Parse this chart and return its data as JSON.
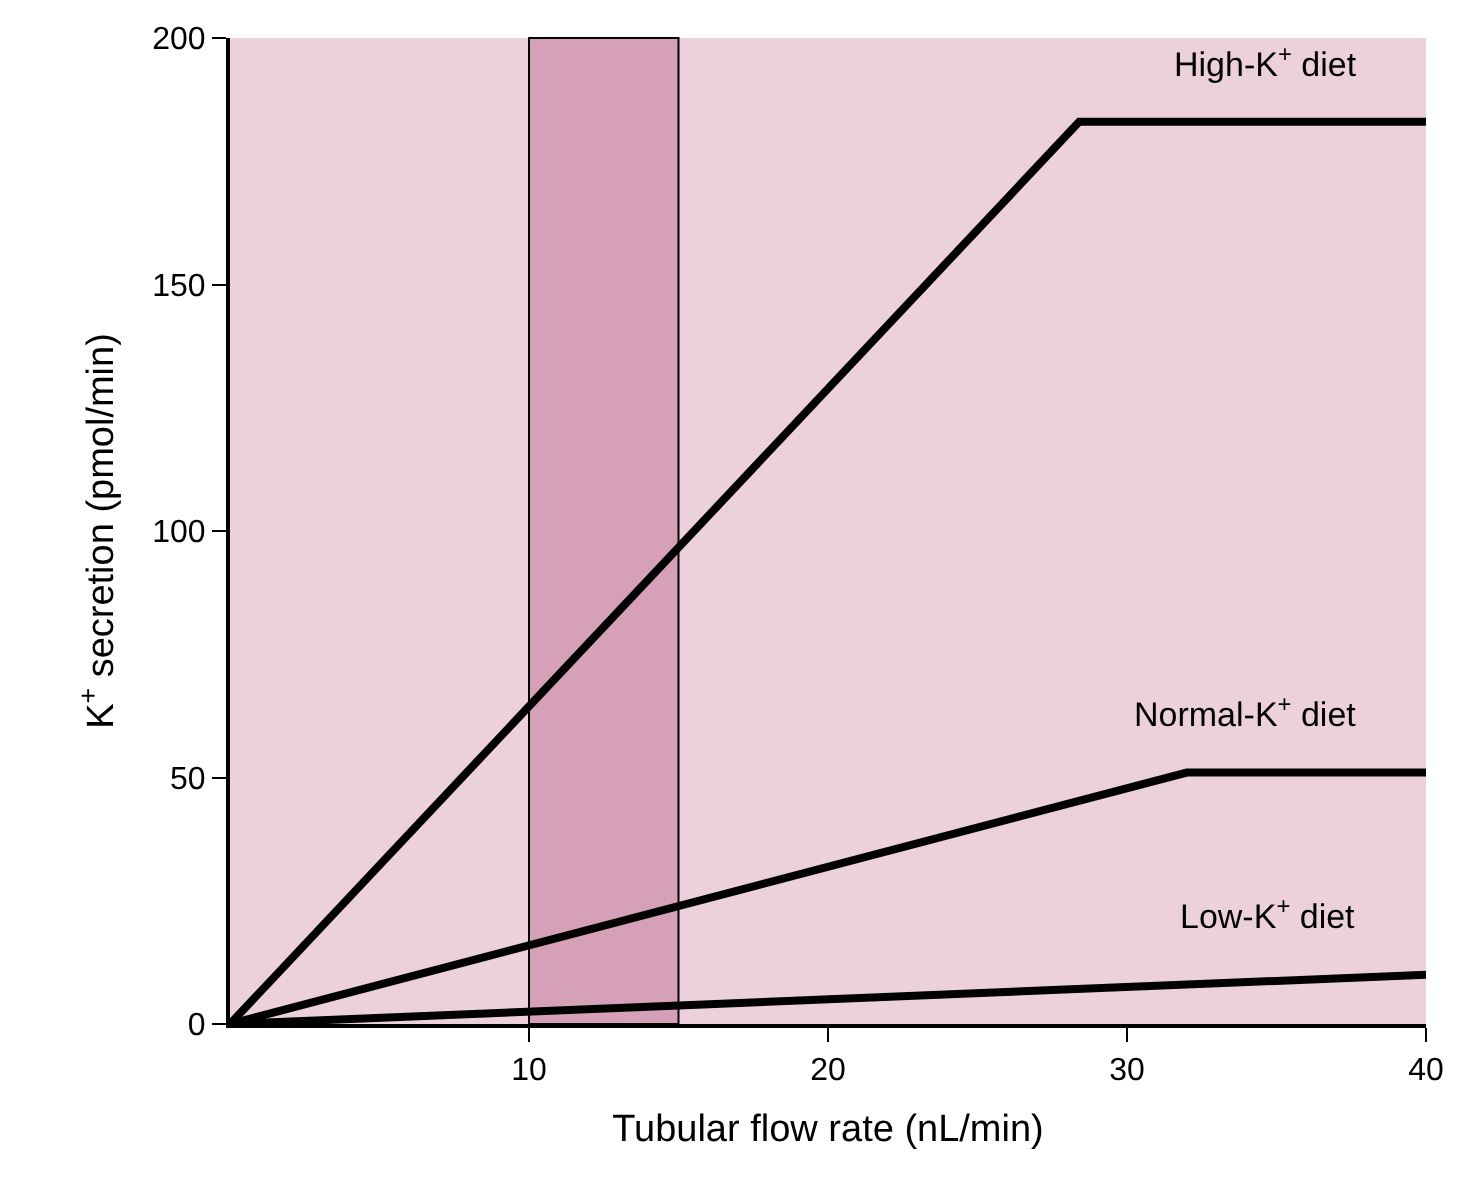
{
  "chart_data": {
    "type": "line",
    "xlabel": "Tubular flow rate (nL/min)",
    "ylabel": "K$^{+}$ secretion (pmol/min)",
    "series": [
      {
        "name": "High-K$^{+}$ diet",
        "color": "#000000",
        "x": [
          0,
          28.4,
          40
        ],
        "values": [
          0,
          183,
          183
        ]
      },
      {
        "name": "Normal-K$^{+}$ diet",
        "color": "#000000",
        "x": [
          0,
          32,
          40
        ],
        "values": [
          0,
          51,
          51
        ]
      },
      {
        "name": "Low-K$^{+}$ diet",
        "color": "#000000",
        "x": [
          0,
          40
        ],
        "values": [
          0,
          10
        ]
      }
    ],
    "bands": [
      {
        "axis": "x",
        "from": 10,
        "to": 15,
        "color": "#d6a0b8"
      }
    ],
    "xlim": [
      0,
      40
    ],
    "xticks": [
      10,
      20,
      30,
      40
    ],
    "ylim": [
      0,
      200
    ],
    "yticks": [
      0,
      50,
      100,
      150,
      200
    ],
    "grid": false,
    "legend": false,
    "marker": "none",
    "line_style": "solid"
  }
}
